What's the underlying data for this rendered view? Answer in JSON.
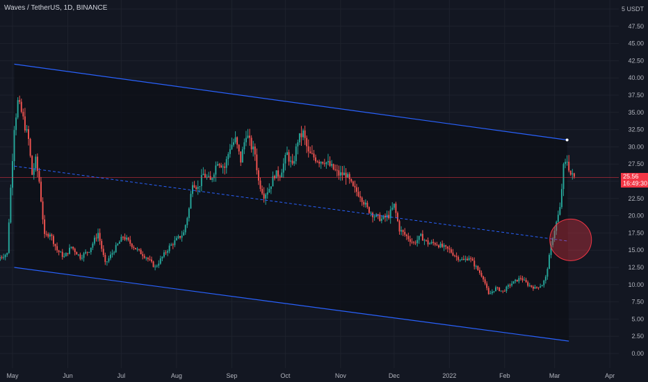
{
  "header": {
    "title": "Waves / TetherUS, 1D, BINANCE"
  },
  "price_badge": {
    "price": "25.56",
    "countdown": "16:49:30"
  },
  "colors": {
    "background": "#131722",
    "up": "#26a69a",
    "down": "#ef5350",
    "channel": "#2962ff",
    "price_line": "#f23645",
    "circle": "#f23645"
  },
  "chart_data": {
    "type": "candlestick",
    "symbol": "Waves / TetherUS",
    "interval": "1D",
    "exchange": "BINANCE",
    "y_axis_unit": "USDT",
    "y_ticks": [
      "5 USDT",
      "47.50",
      "45.00",
      "42.50",
      "40.00",
      "37.50",
      "35.00",
      "32.50",
      "30.00",
      "27.50",
      "25.00",
      "22.50",
      "20.00",
      "17.50",
      "15.00",
      "12.50",
      "10.00",
      "7.50",
      "5.00",
      "2.50",
      "0.00"
    ],
    "ylim": [
      0,
      50
    ],
    "x_ticks": [
      "May",
      "Jun",
      "Jul",
      "Aug",
      "Sep",
      "Oct",
      "Nov",
      "Dec",
      "2022",
      "Feb",
      "Mar",
      "Apr"
    ],
    "xlim": [
      "2021-04-24",
      "2022-04-06"
    ],
    "last_price": 25.56,
    "anchors": [
      [
        "2021-04-24",
        14
      ],
      [
        "2021-04-28",
        14.5
      ],
      [
        "2021-04-30",
        24
      ],
      [
        "2021-05-02",
        33
      ],
      [
        "2021-05-04",
        36.5
      ],
      [
        "2021-05-06",
        35
      ],
      [
        "2021-05-08",
        33
      ],
      [
        "2021-05-10",
        31
      ],
      [
        "2021-05-12",
        26
      ],
      [
        "2021-05-14",
        28
      ],
      [
        "2021-05-16",
        25
      ],
      [
        "2021-05-19",
        17
      ],
      [
        "2021-05-22",
        17.5
      ],
      [
        "2021-05-26",
        15
      ],
      [
        "2021-05-30",
        14
      ],
      [
        "2021-06-03",
        15.5
      ],
      [
        "2021-06-08",
        14
      ],
      [
        "2021-06-13",
        15
      ],
      [
        "2021-06-18",
        17.5
      ],
      [
        "2021-06-22",
        13
      ],
      [
        "2021-06-27",
        15
      ],
      [
        "2021-07-02",
        17
      ],
      [
        "2021-07-06",
        16
      ],
      [
        "2021-07-10",
        15
      ],
      [
        "2021-07-15",
        14
      ],
      [
        "2021-07-20",
        12.5
      ],
      [
        "2021-07-24",
        14
      ],
      [
        "2021-07-28",
        15.5
      ],
      [
        "2021-08-01",
        16.5
      ],
      [
        "2021-08-05",
        17.5
      ],
      [
        "2021-08-08",
        21
      ],
      [
        "2021-08-10",
        25
      ],
      [
        "2021-08-13",
        24
      ],
      [
        "2021-08-16",
        26
      ],
      [
        "2021-08-20",
        25
      ],
      [
        "2021-08-24",
        28
      ],
      [
        "2021-08-28",
        27
      ],
      [
        "2021-08-31",
        30
      ],
      [
        "2021-09-03",
        31
      ],
      [
        "2021-09-06",
        28
      ],
      [
        "2021-09-09",
        32
      ],
      [
        "2021-09-12",
        30
      ],
      [
        "2021-09-14",
        29
      ],
      [
        "2021-09-16",
        25
      ],
      [
        "2021-09-19",
        23
      ],
      [
        "2021-09-22",
        24
      ],
      [
        "2021-09-25",
        26
      ],
      [
        "2021-09-28",
        26
      ],
      [
        "2021-10-02",
        29
      ],
      [
        "2021-10-05",
        27
      ],
      [
        "2021-10-08",
        31
      ],
      [
        "2021-10-11",
        32
      ],
      [
        "2021-10-14",
        29
      ],
      [
        "2021-10-17",
        28.5
      ],
      [
        "2021-10-20",
        28
      ],
      [
        "2021-10-23",
        28
      ],
      [
        "2021-10-27",
        27
      ],
      [
        "2021-10-31",
        26
      ],
      [
        "2021-11-04",
        26
      ],
      [
        "2021-11-08",
        24
      ],
      [
        "2021-11-12",
        23
      ],
      [
        "2021-11-16",
        21
      ],
      [
        "2021-11-20",
        20
      ],
      [
        "2021-11-24",
        19.5
      ],
      [
        "2021-11-28",
        20
      ],
      [
        "2021-12-01",
        21.5
      ],
      [
        "2021-12-04",
        18
      ],
      [
        "2021-12-08",
        17
      ],
      [
        "2021-12-12",
        16
      ],
      [
        "2021-12-16",
        17
      ],
      [
        "2021-12-20",
        16
      ],
      [
        "2021-12-24",
        16
      ],
      [
        "2021-12-28",
        15.5
      ],
      [
        "2022-01-01",
        15
      ],
      [
        "2022-01-05",
        14
      ],
      [
        "2022-01-09",
        13.5
      ],
      [
        "2022-01-12",
        14
      ],
      [
        "2022-01-16",
        12.5
      ],
      [
        "2022-01-20",
        11
      ],
      [
        "2022-01-23",
        8.5
      ],
      [
        "2022-01-27",
        9.5
      ],
      [
        "2022-01-31",
        9
      ],
      [
        "2022-02-04",
        10
      ],
      [
        "2022-02-07",
        10.5
      ],
      [
        "2022-02-10",
        11
      ],
      [
        "2022-02-14",
        10
      ],
      [
        "2022-02-18",
        9.5
      ],
      [
        "2022-02-22",
        10
      ],
      [
        "2022-02-24",
        11
      ],
      [
        "2022-02-26",
        14
      ],
      [
        "2022-02-28",
        17
      ],
      [
        "2022-03-02",
        19
      ],
      [
        "2022-03-04",
        21
      ],
      [
        "2022-03-06",
        27
      ],
      [
        "2022-03-08",
        28
      ],
      [
        "2022-03-10",
        26
      ],
      [
        "2022-03-12",
        25.56
      ]
    ],
    "channel": {
      "upper": [
        [
          "2021-05-02",
          42
        ],
        [
          "2022-03-08",
          31
        ]
      ],
      "lower": [
        [
          "2021-05-02",
          12.5
        ],
        [
          "2022-03-09",
          1.8
        ]
      ],
      "mid": [
        [
          "2021-05-02",
          27.2
        ],
        [
          "2022-03-09",
          16.3
        ]
      ]
    },
    "marker_circle": {
      "date": "2022-03-10",
      "price": 16.5
    },
    "grid": true
  }
}
